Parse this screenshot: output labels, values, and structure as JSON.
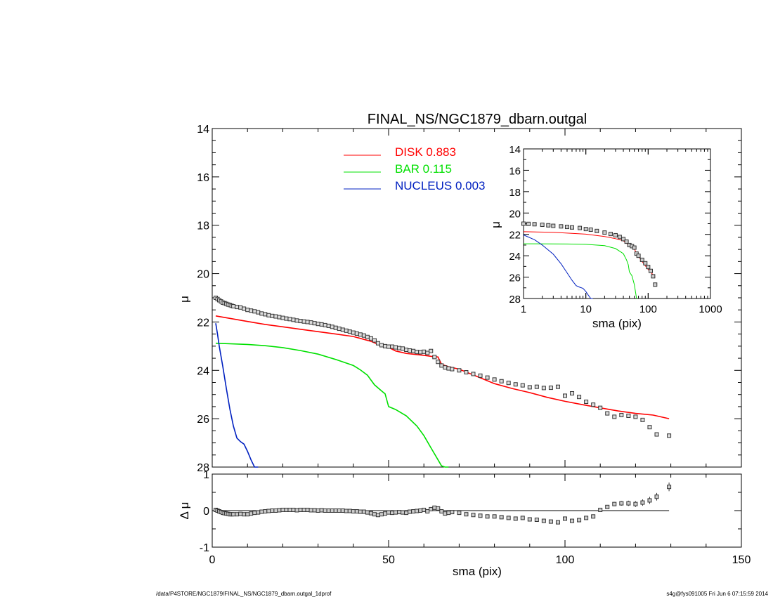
{
  "title": "FINAL_NS/NGC1879_dbarn.outgal",
  "footer_left": "/data/P4STORE/NGC1879/FINAL_NS/NGC1879_dbarn.outgal_1dprof",
  "footer_right": "s4g@fys091005  Fri Jun  6 07:15:59 2014",
  "legend": [
    {
      "label": "DISK",
      "value": "0.883",
      "color": "#ff0000"
    },
    {
      "label": "BAR",
      "value": "0.115",
      "color": "#00e000"
    },
    {
      "label": "NUCLEUS",
      "value": "0.003",
      "color": "#0020c0"
    }
  ],
  "chart_data": [
    {
      "type": "line",
      "panel": "main-profile",
      "title": "FINAL_NS/NGC1879_dbarn.outgal",
      "xlabel": "sma (pix)",
      "ylabel": "μ",
      "xlim": [
        0,
        150
      ],
      "ylim": [
        28,
        14
      ],
      "y_inverted": true,
      "xticks": [
        "0",
        "50",
        "100",
        "150"
      ],
      "yticks": [
        "14",
        "16",
        "18",
        "20",
        "22",
        "24",
        "26",
        "28"
      ],
      "series": [
        {
          "name": "DISK",
          "color": "#ff0000",
          "x": [
            1,
            5,
            10,
            15,
            20,
            25,
            30,
            35,
            40,
            42,
            45,
            48,
            50,
            52,
            55,
            60,
            62,
            64,
            65,
            67,
            70,
            75,
            80,
            85,
            90,
            95,
            100,
            105,
            110,
            115,
            120,
            125,
            129.5
          ],
          "y": [
            21.75,
            21.85,
            21.98,
            22.1,
            22.2,
            22.3,
            22.4,
            22.5,
            22.6,
            22.68,
            22.8,
            22.98,
            23.05,
            23.2,
            23.3,
            23.38,
            23.42,
            23.45,
            23.75,
            23.85,
            23.95,
            24.25,
            24.55,
            24.75,
            24.92,
            25.12,
            25.28,
            25.42,
            25.55,
            25.68,
            25.78,
            25.85,
            26.0
          ]
        },
        {
          "name": "BAR",
          "color": "#00e000",
          "x": [
            1,
            5,
            10,
            15,
            20,
            25,
            30,
            35,
            40,
            42,
            44,
            45,
            46,
            48,
            49,
            50,
            52,
            55,
            58,
            60,
            62,
            64,
            65,
            66,
            67
          ],
          "y": [
            22.88,
            22.9,
            22.93,
            22.98,
            23.06,
            23.18,
            23.33,
            23.55,
            23.8,
            23.98,
            24.2,
            24.4,
            24.6,
            24.85,
            24.97,
            25.5,
            25.62,
            25.88,
            26.3,
            26.7,
            27.2,
            27.7,
            27.95,
            28.2,
            28.4
          ]
        },
        {
          "name": "NUCLEUS",
          "color": "#0020c0",
          "x": [
            1,
            1.5,
            2,
            3,
            4,
            5,
            6,
            7,
            8,
            9,
            10,
            11,
            12,
            13
          ],
          "y": [
            22.05,
            22.5,
            23.0,
            23.85,
            24.75,
            25.6,
            26.3,
            26.8,
            26.95,
            27.05,
            27.35,
            27.7,
            28.0,
            28.3
          ]
        },
        {
          "name": "",
          "style": "markers",
          "x": [
            1,
            1.5,
            2,
            2.5,
            3,
            3.5,
            4,
            4.5,
            5,
            5.5,
            6,
            7,
            8,
            9,
            10,
            11,
            12,
            13,
            14,
            15,
            16,
            17,
            18,
            19,
            20,
            21,
            22,
            23,
            24,
            25,
            26,
            27,
            28,
            29,
            30,
            31,
            32,
            33,
            34,
            35,
            36,
            37,
            38,
            39,
            40,
            41,
            42,
            43,
            44,
            45,
            46,
            47,
            48,
            49,
            50,
            51,
            52,
            53,
            54,
            55,
            56,
            57,
            58,
            59,
            60,
            61,
            62,
            63,
            64,
            65,
            66,
            67,
            68,
            70,
            72,
            74,
            76,
            78,
            80,
            82,
            84,
            86,
            88,
            90,
            92,
            94,
            96,
            98,
            100,
            102,
            104,
            106,
            108,
            110,
            112,
            114,
            116,
            118,
            120,
            122,
            124,
            126,
            129.5
          ],
          "y": [
            21.0,
            21.05,
            21.1,
            21.15,
            21.2,
            21.22,
            21.25,
            21.28,
            21.3,
            21.33,
            21.35,
            21.38,
            21.4,
            21.45,
            21.5,
            21.53,
            21.56,
            21.6,
            21.65,
            21.68,
            21.72,
            21.75,
            21.77,
            21.8,
            21.83,
            21.86,
            21.88,
            21.91,
            21.94,
            21.96,
            21.98,
            22.0,
            22.02,
            22.05,
            22.08,
            22.1,
            22.13,
            22.16,
            22.2,
            22.24,
            22.28,
            22.32,
            22.36,
            22.4,
            22.44,
            22.48,
            22.52,
            22.56,
            22.62,
            22.68,
            22.76,
            22.88,
            22.96,
            23.0,
            23.02,
            23.02,
            23.05,
            23.08,
            23.1,
            23.15,
            23.18,
            23.2,
            23.24,
            23.25,
            23.23,
            23.28,
            23.2,
            23.45,
            23.65,
            23.8,
            23.88,
            23.92,
            23.95,
            24.0,
            24.08,
            24.15,
            24.22,
            24.3,
            24.38,
            24.45,
            24.52,
            24.58,
            24.62,
            24.7,
            24.68,
            24.73,
            24.72,
            24.68,
            25.05,
            24.95,
            25.1,
            25.3,
            25.42,
            25.55,
            25.78,
            25.92,
            25.85,
            25.88,
            25.92,
            26.05,
            26.35,
            26.65,
            26.7
          ]
        }
      ]
    },
    {
      "type": "scatter",
      "panel": "residual",
      "xlabel": "sma (pix)",
      "ylabel": "Δ μ",
      "xlim": [
        0,
        150
      ],
      "ylim": [
        -1,
        1
      ],
      "xticks": [
        "0",
        "50",
        "100",
        "150"
      ],
      "yticks": [
        "1",
        "0",
        "-1"
      ],
      "zero_line_x": [
        0,
        129.5
      ],
      "x": [
        1,
        1.5,
        2,
        2.5,
        3,
        3.5,
        4,
        4.5,
        5,
        5.5,
        6,
        7,
        8,
        9,
        10,
        11,
        12,
        13,
        14,
        15,
        16,
        17,
        18,
        19,
        20,
        21,
        22,
        23,
        24,
        25,
        26,
        27,
        28,
        29,
        30,
        31,
        32,
        33,
        34,
        35,
        36,
        37,
        38,
        39,
        40,
        41,
        42,
        43,
        44,
        45,
        46,
        47,
        48,
        49,
        50,
        51,
        52,
        53,
        54,
        55,
        56,
        57,
        58,
        59,
        60,
        61,
        62,
        63,
        64,
        65,
        66,
        67,
        68,
        70,
        72,
        74,
        76,
        78,
        80,
        82,
        84,
        86,
        88,
        90,
        92,
        94,
        96,
        98,
        100,
        102,
        104,
        106,
        108,
        110,
        112,
        114,
        116,
        118,
        120,
        122,
        124,
        126,
        129.5
      ],
      "y": [
        0.02,
        0.0,
        -0.02,
        -0.04,
        -0.06,
        -0.07,
        -0.08,
        -0.09,
        -0.1,
        -0.1,
        -0.1,
        -0.1,
        -0.09,
        -0.1,
        -0.1,
        -0.08,
        -0.06,
        -0.05,
        -0.03,
        -0.02,
        -0.01,
        0.0,
        0.0,
        0.01,
        0.02,
        0.02,
        0.02,
        0.02,
        0.01,
        0.02,
        0.02,
        0.02,
        0.01,
        0.01,
        0.0,
        0.01,
        0.0,
        0.0,
        0.0,
        0.0,
        0.0,
        0.0,
        -0.01,
        -0.01,
        -0.02,
        -0.02,
        -0.03,
        -0.03,
        -0.05,
        -0.07,
        -0.1,
        -0.12,
        -0.1,
        -0.08,
        -0.05,
        -0.06,
        -0.05,
        -0.04,
        -0.05,
        -0.06,
        -0.03,
        -0.02,
        -0.01,
        0.0,
        0.02,
        -0.02,
        0.04,
        0.08,
        0.06,
        -0.02,
        -0.08,
        -0.06,
        -0.04,
        -0.06,
        -0.1,
        -0.12,
        -0.14,
        -0.16,
        -0.16,
        -0.18,
        -0.2,
        -0.22,
        -0.2,
        -0.24,
        -0.25,
        -0.28,
        -0.3,
        -0.32,
        -0.22,
        -0.28,
        -0.26,
        -0.2,
        -0.16,
        0.02,
        0.1,
        0.18,
        0.2,
        0.2,
        0.18,
        0.22,
        0.28,
        0.38,
        0.65
      ]
    },
    {
      "type": "line",
      "panel": "inset-log",
      "xlabel": "sma (pix)",
      "ylabel": "μ",
      "xscale": "log",
      "xlim": [
        1,
        1000
      ],
      "ylim": [
        28,
        14
      ],
      "y_inverted": true,
      "xticks": [
        "1",
        "10",
        "100",
        "1000"
      ],
      "yticks": [
        "14",
        "16",
        "18",
        "20",
        "22",
        "24",
        "26",
        "28"
      ],
      "series": [
        {
          "name": "DISK",
          "color": "#ff0000",
          "x": [
            1,
            3,
            10,
            20,
            30,
            40,
            50,
            60,
            65,
            80,
            100,
            130
          ],
          "y": [
            21.75,
            21.8,
            21.98,
            22.2,
            22.4,
            22.6,
            23.05,
            23.38,
            23.75,
            24.55,
            25.28,
            26.0
          ]
        },
        {
          "name": "BAR",
          "color": "#00e000",
          "x": [
            1,
            5,
            10,
            20,
            30,
            40,
            45,
            48,
            50,
            55,
            60,
            65,
            67
          ],
          "y": [
            22.88,
            22.9,
            22.93,
            23.06,
            23.33,
            23.8,
            24.4,
            24.85,
            25.5,
            25.88,
            26.7,
            27.95,
            28.4
          ]
        },
        {
          "name": "NUCLEUS",
          "color": "#0020c0",
          "x": [
            1,
            1.5,
            2,
            3,
            4,
            5,
            6,
            7,
            8,
            9,
            10,
            11,
            12,
            13
          ],
          "y": [
            22.05,
            22.5,
            23.0,
            23.85,
            24.75,
            25.6,
            26.3,
            26.8,
            26.95,
            27.05,
            27.35,
            27.7,
            28.0,
            28.3
          ]
        },
        {
          "name": "",
          "style": "markers",
          "x": [
            1,
            1.2,
            1.5,
            2,
            2.5,
            3,
            4,
            5,
            6,
            8,
            10,
            12,
            15,
            20,
            25,
            30,
            35,
            40,
            45,
            50,
            55,
            60,
            65,
            70,
            80,
            90,
            100,
            110,
            120,
            129.5
          ],
          "y": [
            21.0,
            21.02,
            21.05,
            21.1,
            21.15,
            21.2,
            21.25,
            21.3,
            21.35,
            21.4,
            21.5,
            21.56,
            21.68,
            21.83,
            21.96,
            22.08,
            22.24,
            22.44,
            22.68,
            23.0,
            23.1,
            23.24,
            23.8,
            24.0,
            24.38,
            24.7,
            25.05,
            25.42,
            25.92,
            26.7
          ]
        }
      ]
    }
  ]
}
